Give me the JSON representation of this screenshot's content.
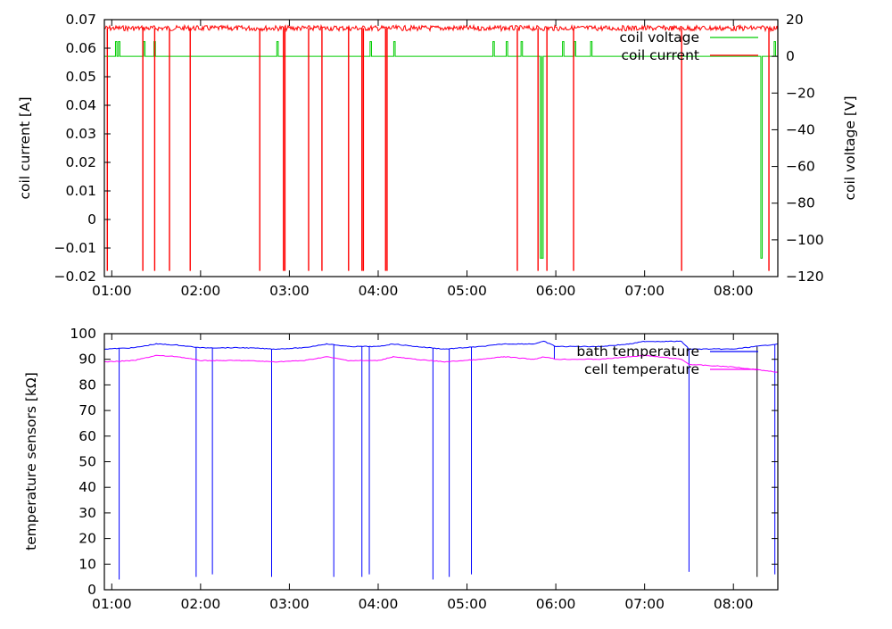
{
  "chart_data": [
    {
      "type": "line",
      "xlabel": "",
      "ylabel": "coil current [A]",
      "y2label": "coil voltage [V]",
      "xlim": [
        "00:55",
        "08:30"
      ],
      "ylim": [
        -0.02,
        0.07
      ],
      "y2lim": [
        -120,
        20
      ],
      "x_ticks": [
        "01:00",
        "02:00",
        "03:00",
        "04:00",
        "05:00",
        "06:00",
        "07:00",
        "08:00"
      ],
      "y_ticks": [
        "0.07",
        "0.06",
        "0.05",
        "0.04",
        "0.03",
        "0.02",
        "0.01",
        "0",
        "−0.01",
        "−0.02"
      ],
      "y_tick_values": [
        0.07,
        0.06,
        0.05,
        0.04,
        0.03,
        0.02,
        0.01,
        0,
        -0.01,
        -0.02
      ],
      "y2_ticks": [
        "20",
        "0",
        "−20",
        "−40",
        "−60",
        "−80",
        "−100",
        "−120"
      ],
      "y2_tick_values": [
        20,
        0,
        -20,
        -40,
        -60,
        -80,
        -100,
        -120
      ],
      "legend_position": "top-right",
      "series": [
        {
          "name": "coil voltage",
          "axis": "right",
          "color": "#00cc00",
          "baseline": 0,
          "spikes_up": [
            {
              "x": "01:03",
              "y": 8
            },
            {
              "x": "01:05",
              "y": 8
            },
            {
              "x": "01:22",
              "y": 8
            },
            {
              "x": "01:29",
              "y": 8
            },
            {
              "x": "02:52",
              "y": 8
            },
            {
              "x": "03:55",
              "y": 8
            },
            {
              "x": "04:11",
              "y": 8
            },
            {
              "x": "05:18",
              "y": 8
            },
            {
              "x": "05:27",
              "y": 8
            },
            {
              "x": "05:37",
              "y": 8
            },
            {
              "x": "06:05",
              "y": 8
            },
            {
              "x": "06:13",
              "y": 8
            },
            {
              "x": "06:24",
              "y": 8
            },
            {
              "x": "08:28",
              "y": 8
            }
          ],
          "spikes_down": [
            {
              "x": "05:50",
              "y": -110
            },
            {
              "x": "05:51",
              "y": -110
            },
            {
              "x": "08:19",
              "y": -110
            }
          ]
        },
        {
          "name": "coil current",
          "axis": "left",
          "color": "#ff0000",
          "baseline": 0.067,
          "dips": [
            {
              "x": "00:57",
              "y": -0.018
            },
            {
              "x": "01:21",
              "y": -0.018
            },
            {
              "x": "01:29",
              "y": -0.018
            },
            {
              "x": "01:39",
              "y": -0.018
            },
            {
              "x": "01:53",
              "y": -0.018
            },
            {
              "x": "02:40",
              "y": -0.018
            },
            {
              "x": "02:56",
              "y": -0.018
            },
            {
              "x": "02:57",
              "y": -0.018
            },
            {
              "x": "03:13",
              "y": -0.018
            },
            {
              "x": "03:22",
              "y": -0.018
            },
            {
              "x": "03:40",
              "y": -0.018
            },
            {
              "x": "03:49",
              "y": -0.018
            },
            {
              "x": "03:50",
              "y": -0.018
            },
            {
              "x": "04:05",
              "y": -0.018
            },
            {
              "x": "04:06",
              "y": -0.018
            },
            {
              "x": "05:34",
              "y": -0.018
            },
            {
              "x": "05:48",
              "y": -0.018
            },
            {
              "x": "05:54",
              "y": -0.018
            },
            {
              "x": "06:12",
              "y": -0.018
            },
            {
              "x": "07:25",
              "y": -0.018
            },
            {
              "x": "08:24",
              "y": -0.018
            }
          ]
        }
      ]
    },
    {
      "type": "line",
      "xlabel": "",
      "ylabel": "temperature sensors [kΩ]",
      "xlim": [
        "00:55",
        "08:30"
      ],
      "ylim": [
        0,
        100
      ],
      "x_ticks": [
        "01:00",
        "02:00",
        "03:00",
        "04:00",
        "05:00",
        "06:00",
        "07:00",
        "08:00"
      ],
      "y_ticks": [
        "100",
        "90",
        "80",
        "70",
        "60",
        "50",
        "40",
        "30",
        "20",
        "10",
        "0"
      ],
      "y_tick_values": [
        100,
        90,
        80,
        70,
        60,
        50,
        40,
        30,
        20,
        10,
        0
      ],
      "legend_position": "top-right",
      "series": [
        {
          "name": "bath temperature",
          "color": "#0000ff",
          "points": [
            [
              "00:55",
              94
            ],
            [
              "01:15",
              94.5
            ],
            [
              "01:30",
              96
            ],
            [
              "01:45",
              95.5
            ],
            [
              "02:00",
              94.5
            ],
            [
              "02:30",
              94.5
            ],
            [
              "02:50",
              94
            ],
            [
              "03:10",
              94.5
            ],
            [
              "03:25",
              96
            ],
            [
              "03:40",
              95
            ],
            [
              "04:00",
              95
            ],
            [
              "04:10",
              96
            ],
            [
              "04:25",
              95
            ],
            [
              "04:45",
              94
            ],
            [
              "05:10",
              95
            ],
            [
              "05:25",
              96
            ],
            [
              "05:45",
              96
            ],
            [
              "05:52",
              97
            ],
            [
              "06:00",
              95
            ],
            [
              "06:30",
              95
            ],
            [
              "06:50",
              96
            ],
            [
              "07:00",
              97
            ],
            [
              "07:25",
              97
            ],
            [
              "07:30",
              94
            ],
            [
              "08:00",
              94
            ],
            [
              "08:30",
              96
            ]
          ],
          "dips": [
            {
              "x": "01:05",
              "y": 4
            },
            {
              "x": "01:57",
              "y": 5
            },
            {
              "x": "02:08",
              "y": 6
            },
            {
              "x": "02:48",
              "y": 5
            },
            {
              "x": "03:30",
              "y": 5
            },
            {
              "x": "03:49",
              "y": 5
            },
            {
              "x": "03:54",
              "y": 6
            },
            {
              "x": "04:37",
              "y": 4
            },
            {
              "x": "04:48",
              "y": 5
            },
            {
              "x": "05:03",
              "y": 6
            },
            {
              "x": "05:59",
              "y": 90
            },
            {
              "x": "07:30",
              "y": 7
            },
            {
              "x": "08:28",
              "y": 6
            }
          ]
        },
        {
          "name": "cell temperature",
          "color": "#ff00ff",
          "points": [
            [
              "00:55",
              89
            ],
            [
              "01:15",
              89.5
            ],
            [
              "01:30",
              91.5
            ],
            [
              "01:45",
              91
            ],
            [
              "02:00",
              89.5
            ],
            [
              "02:30",
              89.5
            ],
            [
              "02:50",
              89
            ],
            [
              "03:10",
              89.5
            ],
            [
              "03:25",
              91
            ],
            [
              "03:40",
              89.5
            ],
            [
              "04:00",
              89.5
            ],
            [
              "04:10",
              91
            ],
            [
              "04:25",
              90
            ],
            [
              "04:45",
              89
            ],
            [
              "05:10",
              90
            ],
            [
              "05:25",
              91
            ],
            [
              "05:45",
              90
            ],
            [
              "05:52",
              91
            ],
            [
              "06:00",
              90
            ],
            [
              "06:30",
              90
            ],
            [
              "06:50",
              91
            ],
            [
              "07:00",
              91.5
            ],
            [
              "07:25",
              90
            ],
            [
              "07:30",
              88
            ],
            [
              "08:00",
              87
            ],
            [
              "08:30",
              85
            ]
          ],
          "dips": []
        }
      ],
      "extra_lines": [
        {
          "x": "08:16",
          "y": 5,
          "color": "#000000"
        }
      ]
    }
  ]
}
